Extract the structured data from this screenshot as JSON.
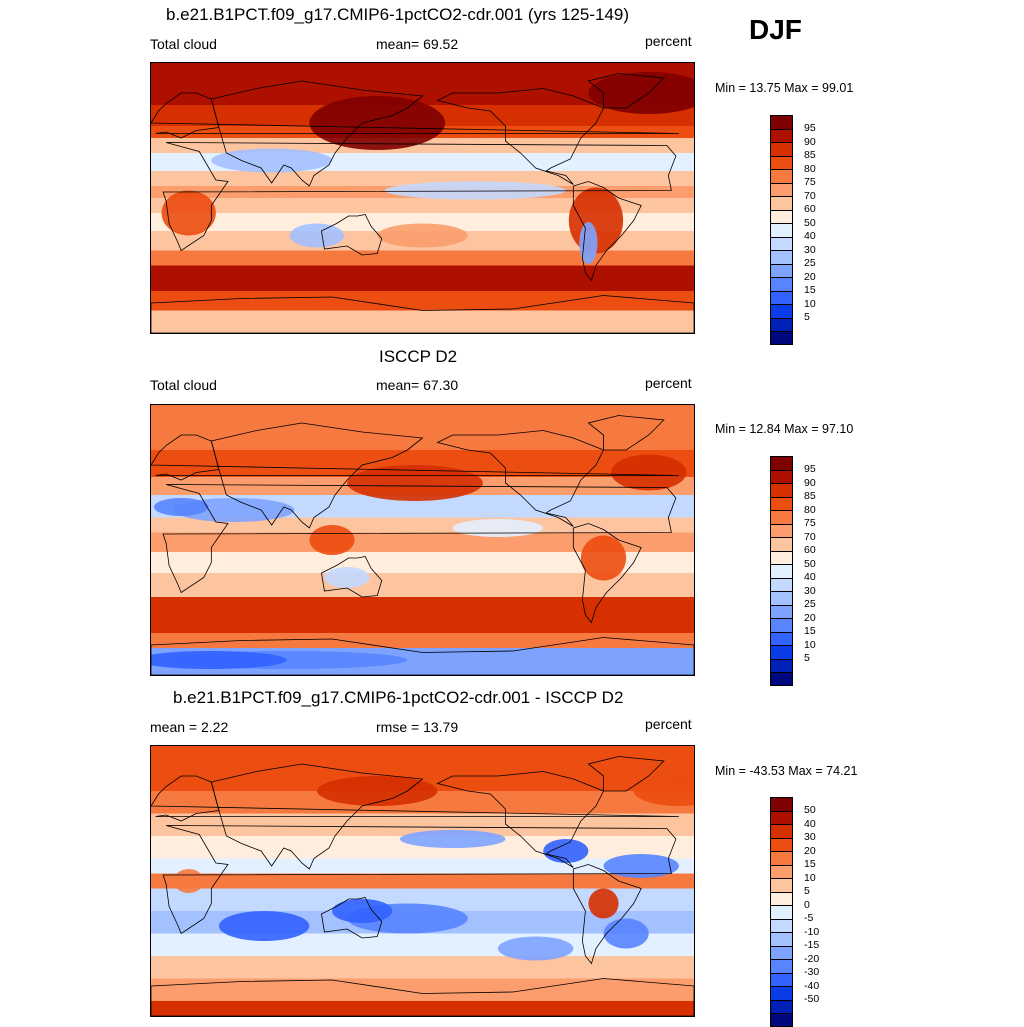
{
  "season": "DJF",
  "panels": [
    {
      "title": "b.e21.B1PCT.f09_g17.CMIP6-1pctCO2-cdr.001 (yrs 125-149)",
      "left_label": "Total cloud",
      "center_label": "mean=  69.52",
      "right_label": "percent",
      "minmax": "Min =  13.75 Max =  99.01",
      "field": "model",
      "colorbar": {
        "colors": [
          "#7f0000",
          "#ae1000",
          "#d62f00",
          "#ec4d10",
          "#f67a40",
          "#fb9d6c",
          "#fdc4a0",
          "#ffeede",
          "#e3f0ff",
          "#c3d9ff",
          "#a3c0ff",
          "#7ea3ff",
          "#5884ff",
          "#3262ff",
          "#0b3ce8",
          "#0020b8",
          "#000880"
        ],
        "labels": [
          "95",
          "90",
          "85",
          "80",
          "75",
          "70",
          "60",
          "50",
          "40",
          "30",
          "25",
          "20",
          "15",
          "10",
          "5"
        ]
      }
    },
    {
      "title": "ISCCP D2",
      "left_label": "Total cloud",
      "center_label": "mean=  67.30",
      "right_label": "percent",
      "minmax": "Min =  12.84 Max =  97.10",
      "field": "obs",
      "colorbar": {
        "colors": [
          "#7f0000",
          "#ae1000",
          "#d62f00",
          "#ec4d10",
          "#f67a40",
          "#fb9d6c",
          "#fdc4a0",
          "#ffeede",
          "#e3f0ff",
          "#c3d9ff",
          "#a3c0ff",
          "#7ea3ff",
          "#5884ff",
          "#3262ff",
          "#0b3ce8",
          "#0020b8",
          "#000880"
        ],
        "labels": [
          "95",
          "90",
          "85",
          "80",
          "75",
          "70",
          "60",
          "50",
          "40",
          "30",
          "25",
          "20",
          "15",
          "10",
          "5"
        ]
      }
    },
    {
      "title": "b.e21.B1PCT.f09_g17.CMIP6-1pctCO2-cdr.001 - ISCCP D2",
      "left_label": "mean =   2.22",
      "center_label": "rmse =  13.79",
      "right_label": "percent",
      "minmax": "Min = -43.53 Max =  74.21",
      "field": "diff",
      "colorbar": {
        "colors": [
          "#7f0000",
          "#ae1000",
          "#d62f00",
          "#ec4d10",
          "#f67a40",
          "#fb9d6c",
          "#fdc4a0",
          "#ffeede",
          "#e3f0ff",
          "#c3d9ff",
          "#a3c0ff",
          "#7ea3ff",
          "#5884ff",
          "#3262ff",
          "#0b3ce8",
          "#0020b8",
          "#000880"
        ],
        "labels": [
          "50",
          "40",
          "30",
          "20",
          "15",
          "10",
          "5",
          "0",
          "-5",
          "-10",
          "-15",
          "-20",
          "-30",
          "-40",
          "-50"
        ]
      }
    }
  ]
}
